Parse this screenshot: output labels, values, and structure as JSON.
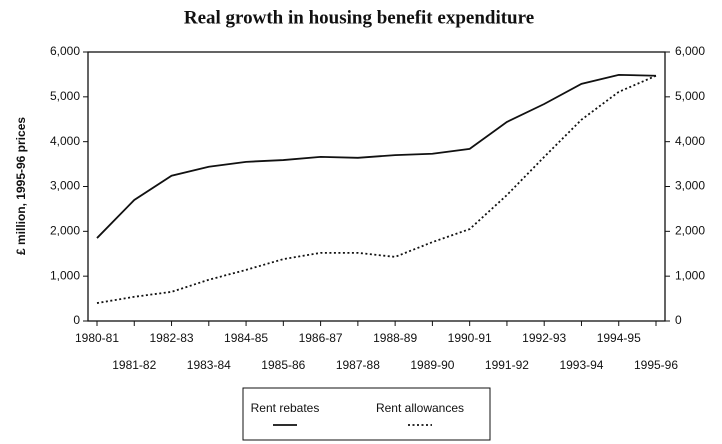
{
  "chart_data": {
    "type": "line",
    "title": "Real growth in housing benefit expenditure",
    "y_label": "£ million, 1995-96 prices",
    "categories": [
      "1980-81",
      "1981-82",
      "1982-83",
      "1983-84",
      "1984-85",
      "1985-86",
      "1986-87",
      "1987-88",
      "1988-89",
      "1989-90",
      "1990-91",
      "1991-92",
      "1992-93",
      "1993-94",
      "1994-95",
      "1995-96"
    ],
    "series": [
      {
        "name": "Rent rebates",
        "color": "#111111",
        "style": "solid",
        "values": [
          1850,
          2700,
          3240,
          3440,
          3550,
          3590,
          3660,
          3640,
          3700,
          3730,
          3840,
          4440,
          4840,
          5290,
          5490,
          5470
        ]
      },
      {
        "name": "Rent allowances",
        "color": "#111111",
        "style": "dotted",
        "values": [
          400,
          540,
          650,
          920,
          1140,
          1380,
          1520,
          1520,
          1430,
          1760,
          2050,
          2810,
          3660,
          4490,
          5110,
          5470
        ]
      }
    ],
    "ylim": [
      0,
      6000
    ],
    "yticks": [
      0,
      {
        "value": 1000,
        "label": "1,000"
      },
      {
        "value": 2000,
        "label": "2,000"
      },
      {
        "value": 3000,
        "label": "3,000"
      },
      {
        "value": 4000,
        "label": "4,000"
      },
      {
        "value": 5000,
        "label": "5,000"
      },
      {
        "value": 6000,
        "label": "6,000"
      }
    ],
    "y2lim": [
      0,
      6000
    ],
    "y2ticks": [
      0,
      {
        "value": 1000,
        "label": "1,000"
      },
      {
        "value": 2000,
        "label": "2,000"
      },
      {
        "value": 3000,
        "label": "3,000"
      },
      {
        "value": 4000,
        "label": "4,000"
      },
      {
        "value": 5000,
        "label": "5,000"
      },
      {
        "value": 6000,
        "label": "6,000"
      }
    ],
    "legend": "bottom"
  }
}
